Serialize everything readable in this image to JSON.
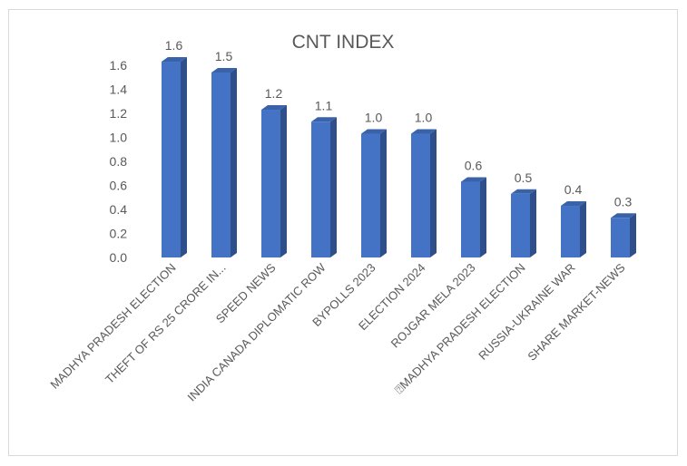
{
  "chart_data": {
    "type": "bar",
    "title": "CNT INDEX",
    "xlabel": "",
    "ylabel": "",
    "ylim": [
      0,
      1.6
    ],
    "yticks": [
      "0.0",
      "0.2",
      "0.4",
      "0.6",
      "0.8",
      "1.0",
      "1.2",
      "1.4",
      "1.6"
    ],
    "grid": false,
    "legend": "none",
    "style": "3d-column",
    "categories": [
      "MADHYA PRADESH ELECTION",
      "THEFT OF RS 25 CRORE IN...",
      "SPEED NEWS",
      "INDIA CANADA DIPLOMATIC ROW",
      "BYPOLLS 2023",
      "ELECTION 2024",
      "ROJGAR MELA 2023",
      "⍰MADHYA PRADESH ELECTION",
      "RUSSIA-UKRAINE WAR",
      "SHARE MARKET-NEWS"
    ],
    "values": [
      1.63,
      1.54,
      1.23,
      1.13,
      1.03,
      1.03,
      0.63,
      0.53,
      0.43,
      0.33
    ],
    "data_labels": [
      "1.6",
      "1.5",
      "1.2",
      "1.1",
      "1.0",
      "1.0",
      "0.6",
      "0.5",
      "0.4",
      "0.3"
    ],
    "colors": {
      "front": "#4472c4",
      "side": "#2f4f8a",
      "top": "#3a62a8"
    }
  }
}
